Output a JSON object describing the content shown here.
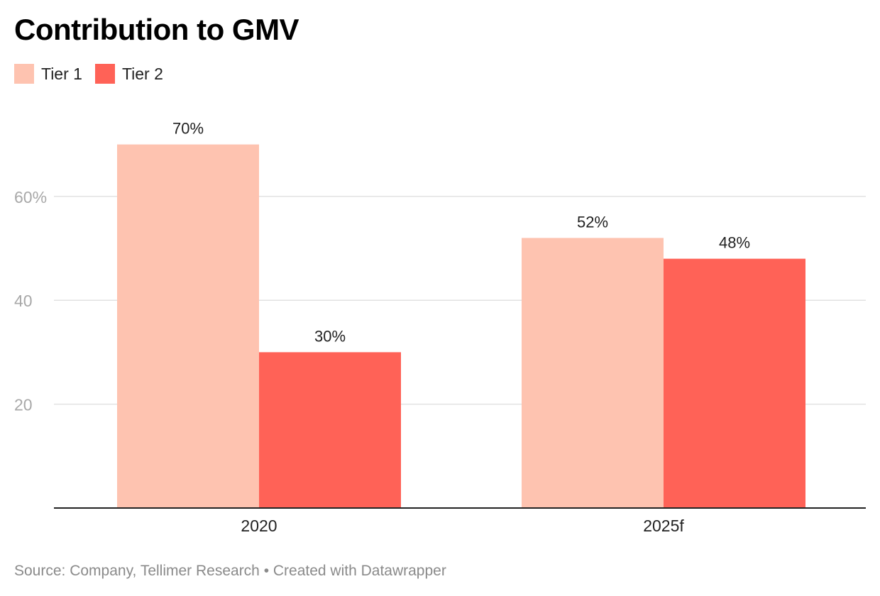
{
  "chart_data": {
    "type": "bar",
    "title": "Contribution to GMV",
    "categories": [
      "2020",
      "2025f"
    ],
    "series": [
      {
        "name": "Tier 1",
        "values": [
          70,
          52
        ],
        "labels": [
          "70%",
          "52%"
        ],
        "color": "#fec3b0"
      },
      {
        "name": "Tier 2",
        "values": [
          30,
          48
        ],
        "labels": [
          "30%",
          "48%"
        ],
        "color": "#ff6257"
      }
    ],
    "yticks": [
      20,
      40,
      60
    ],
    "ytick_labels": [
      "20",
      "40",
      "60%"
    ],
    "ylim": [
      0,
      75
    ],
    "grid": true,
    "legend": "top-left",
    "xlabel": "",
    "ylabel": ""
  },
  "source": "Source: Company, Tellimer Research • Created with Datawrapper"
}
